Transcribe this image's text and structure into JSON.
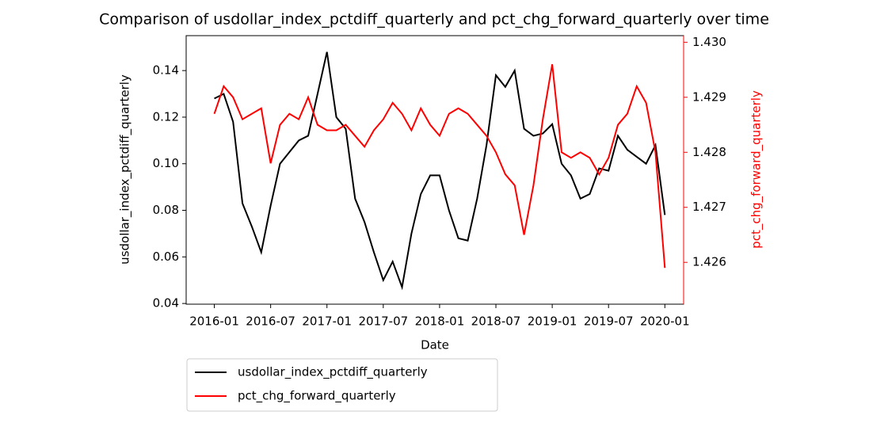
{
  "chart_data": {
    "type": "line",
    "title": "Comparison of usdollar_index_pctdiff_quarterly and pct_chg_forward_quarterly over time",
    "x_label": "Date",
    "y_label": "usdollar_index_pctdiff_quarterly",
    "y2_label": "pct_chg_forward_quarterly",
    "x": [
      "2016-01",
      "2016-02",
      "2016-03",
      "2016-04",
      "2016-05",
      "2016-06",
      "2016-07",
      "2016-08",
      "2016-09",
      "2016-10",
      "2016-11",
      "2016-12",
      "2017-01",
      "2017-02",
      "2017-03",
      "2017-04",
      "2017-05",
      "2017-06",
      "2017-07",
      "2017-08",
      "2017-09",
      "2017-10",
      "2017-11",
      "2017-12",
      "2018-01",
      "2018-02",
      "2018-03",
      "2018-04",
      "2018-05",
      "2018-06",
      "2018-07",
      "2018-08",
      "2018-09",
      "2018-10",
      "2018-11",
      "2018-12",
      "2019-01",
      "2019-02",
      "2019-03",
      "2019-04",
      "2019-05",
      "2019-06",
      "2019-07",
      "2019-08",
      "2019-09",
      "2019-10",
      "2019-11",
      "2019-12",
      "2020-01"
    ],
    "xlim": [
      "2015-10",
      "2020-03"
    ],
    "xticks": [
      "2016-01",
      "2016-07",
      "2017-01",
      "2017-07",
      "2018-01",
      "2018-07",
      "2019-01",
      "2019-07",
      "2020-01"
    ],
    "ylim": [
      0.0397,
      0.155
    ],
    "yticks": [
      0.04,
      0.06,
      0.08,
      {
        "value": 0.1,
        "label": "0.10"
      },
      0.12,
      0.14
    ],
    "y2lim": [
      1.42524,
      1.43012
    ],
    "y2ticks": [
      1.426,
      1.427,
      1.428,
      1.429,
      {
        "value": 1.43,
        "label": "1.430"
      }
    ],
    "y2_color": "#ff0000",
    "legend": "below",
    "series": [
      {
        "name": "usdollar_index_pctdiff_quarterly",
        "color": "#000000",
        "values": [
          0.128,
          0.13,
          0.118,
          0.083,
          0.073,
          0.062,
          0.082,
          0.1,
          0.105,
          0.11,
          0.112,
          0.13,
          0.148,
          0.12,
          0.115,
          0.085,
          0.075,
          0.062,
          0.05,
          0.058,
          0.047,
          0.07,
          0.087,
          0.095,
          0.095,
          0.08,
          0.068,
          0.067,
          0.085,
          0.108,
          0.138,
          0.133,
          0.14,
          0.115,
          0.112,
          0.113,
          0.117,
          0.1,
          0.095,
          0.085,
          0.087,
          0.098,
          0.097,
          0.112,
          0.106,
          0.103,
          0.1,
          0.108,
          0.078
        ]
      },
      {
        "name": "pct_chg_forward_quarterly",
        "color": "#ff0000",
        "axis": "y2",
        "values": [
          1.4287,
          1.4292,
          1.429,
          1.4286,
          1.4287,
          1.4288,
          1.4278,
          1.4285,
          1.4287,
          1.4286,
          1.429,
          1.4285,
          1.4284,
          1.4284,
          1.4285,
          1.4283,
          1.4281,
          1.4284,
          1.4286,
          1.4289,
          1.4287,
          1.4284,
          1.4288,
          1.4285,
          1.4283,
          1.4287,
          1.4288,
          1.4287,
          1.4285,
          1.4283,
          1.428,
          1.4276,
          1.4274,
          1.4265,
          1.4274,
          1.4286,
          1.4296,
          1.428,
          1.4279,
          1.428,
          1.4279,
          1.4276,
          1.4279,
          1.4285,
          1.4287,
          1.4292,
          1.4289,
          1.428,
          1.4259
        ]
      }
    ]
  }
}
